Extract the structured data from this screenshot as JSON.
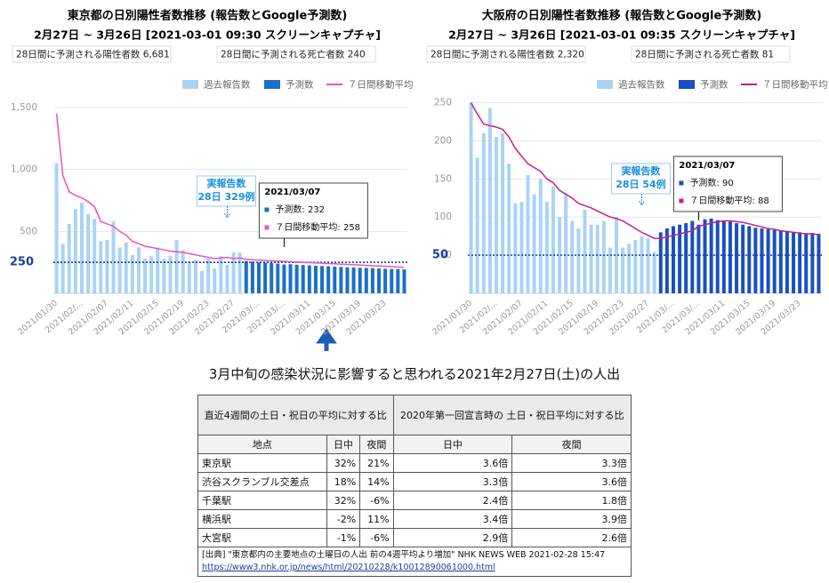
{
  "chart_data": [
    {
      "type": "bar",
      "title": "東京都の日別陽性者数推移 (報告数とGoogle予測数)",
      "subtitle": "2月27日 ~ 3月26日 [2021-03-01 09:30 スクリーンキャプチャ]",
      "stats": [
        "28日間に予測される陽性者数 6,681",
        "28日間に予測される死亡者数 240"
      ],
      "categories": [
        "2021/01/30",
        null,
        null,
        null,
        "2021/02/...",
        null,
        null,
        null,
        "2021/02/07",
        null,
        null,
        null,
        "2021/02/11",
        null,
        null,
        null,
        "2021/02/15",
        null,
        null,
        null,
        "2021/02/19",
        null,
        null,
        null,
        "2021/02/23",
        null,
        null,
        null,
        "2021/02/27",
        null,
        null,
        null,
        "2021/03/...",
        null,
        null,
        null,
        "2021/03/...",
        null,
        null,
        null,
        "2021/03/11",
        null,
        null,
        null,
        "2021/03/15",
        null,
        null,
        null,
        "2021/03/19",
        null,
        null,
        null,
        "2021/03/23",
        null,
        null,
        null
      ],
      "series": [
        {
          "name": "過去報告数",
          "color": "#a9d3f5",
          "values": [
            1050,
            400,
            560,
            680,
            730,
            640,
            600,
            420,
            430,
            580,
            370,
            410,
            310,
            370,
            280,
            300,
            370,
            280,
            300,
            430,
            350,
            260,
            270,
            180,
            280,
            200,
            300,
            230,
            330,
            329,
            null,
            null,
            null,
            null,
            null,
            null,
            null,
            null,
            null,
            null,
            null,
            null,
            null,
            null,
            null,
            null,
            null,
            null,
            null,
            null,
            null,
            null,
            null,
            null,
            null,
            null
          ]
        },
        {
          "name": "予測数",
          "color": "#1a6fc9",
          "values": [
            null,
            null,
            null,
            null,
            null,
            null,
            null,
            null,
            null,
            null,
            null,
            null,
            null,
            null,
            null,
            null,
            null,
            null,
            null,
            null,
            null,
            null,
            null,
            null,
            null,
            null,
            null,
            null,
            null,
            null,
            260,
            255,
            250,
            248,
            245,
            240,
            232,
            235,
            230,
            228,
            225,
            222,
            220,
            218,
            215,
            213,
            210,
            208,
            206,
            205,
            203,
            200,
            198,
            196,
            195,
            193
          ]
        },
        {
          "name": "７日間移動平均",
          "color": "#f050c0",
          "type": "line",
          "values": [
            1450,
            950,
            820,
            790,
            770,
            740,
            700,
            580,
            560,
            540,
            500,
            470,
            420,
            400,
            380,
            370,
            360,
            350,
            340,
            335,
            330,
            320,
            310,
            300,
            290,
            280,
            285,
            290,
            280,
            285,
            275,
            270,
            268,
            265,
            262,
            260,
            258,
            255,
            252,
            250,
            248,
            245,
            243,
            240,
            238,
            235,
            233,
            230,
            228,
            225,
            222,
            220,
            218,
            215,
            212,
            210
          ]
        }
      ],
      "ylim": [
        0,
        1600
      ],
      "yticks": [
        500,
        {
          "value": 1000,
          "label": "1,000"
        },
        {
          "value": 1500,
          "label": "1,500"
        }
      ],
      "grid": true,
      "reference_value": 250,
      "reference_color": "#1a3fa0",
      "annotation": {
        "title": "実報告数",
        "text": "28日 329例"
      },
      "tooltip": {
        "title": "2021/03/07",
        "lines": [
          "予測数: 232",
          "７日間移動平均: 258"
        ]
      }
    },
    {
      "type": "bar",
      "title": "大阪府の日別陽性者数推移 (報告数とGoogle予測数)",
      "subtitle": "2月27日 ~ 3月26日 [2021-03-01 09:35 スクリーンキャプチャ]",
      "stats": [
        "28日間に予測される陽性者数 2,320",
        "28日間に予測される死亡者数 81"
      ],
      "categories": [
        "2021/01/30",
        null,
        null,
        null,
        "2021/02/...",
        null,
        null,
        null,
        "2021/02/07",
        null,
        null,
        null,
        "2021/02/11",
        null,
        null,
        null,
        "2021/02/15",
        null,
        null,
        null,
        "2021/02/19",
        null,
        null,
        null,
        "2021/02/23",
        null,
        null,
        null,
        "2021/02/27",
        null,
        null,
        null,
        "2021/03/...",
        null,
        null,
        null,
        "2021/03/...",
        null,
        null,
        null,
        "2021/03/11",
        null,
        null,
        null,
        "2021/03/15",
        null,
        null,
        null,
        "2021/03/19",
        null,
        null,
        null,
        "2021/03/23",
        null,
        null,
        null
      ],
      "series": [
        {
          "name": "過去報告数",
          "color": "#a9d3f5",
          "values": [
            250,
            178,
            210,
            243,
            205,
            210,
            170,
            118,
            120,
            155,
            130,
            150,
            120,
            140,
            100,
            130,
            95,
            85,
            110,
            90,
            90,
            95,
            60,
            100,
            60,
            65,
            70,
            75,
            72,
            54,
            null,
            null,
            null,
            null,
            null,
            null,
            null,
            null,
            null,
            null,
            null,
            null,
            null,
            null,
            null,
            null,
            null,
            null,
            null,
            null,
            null,
            null,
            null,
            null,
            null,
            null
          ]
        },
        {
          "name": "予測数",
          "color": "#1a50c0",
          "values": [
            null,
            null,
            null,
            null,
            null,
            null,
            null,
            null,
            null,
            null,
            null,
            null,
            null,
            null,
            null,
            null,
            null,
            null,
            null,
            null,
            null,
            null,
            null,
            null,
            null,
            null,
            null,
            null,
            null,
            null,
            80,
            85,
            88,
            90,
            92,
            95,
            90,
            97,
            98,
            96,
            95,
            94,
            92,
            90,
            88,
            86,
            85,
            84,
            83,
            82,
            81,
            80,
            80,
            79,
            79,
            78
          ]
        },
        {
          "name": "７日間移動平均",
          "color": "#c0208f",
          "type": "line",
          "values": [
            250,
            235,
            222,
            220,
            218,
            215,
            205,
            190,
            180,
            170,
            165,
            160,
            150,
            145,
            135,
            130,
            125,
            118,
            115,
            112,
            108,
            104,
            100,
            98,
            95,
            90,
            85,
            80,
            76,
            72,
            72,
            74,
            76,
            78,
            80,
            82,
            88,
            90,
            92,
            94,
            95,
            95,
            94,
            93,
            91,
            89,
            87,
            85,
            84,
            82,
            81,
            80,
            79,
            78,
            78,
            77
          ]
        }
      ],
      "ylim": [
        0,
        260
      ],
      "yticks": [
        50,
        100,
        150,
        200,
        250
      ],
      "grid": true,
      "reference_value": 50,
      "reference_color": "#1a3fa0",
      "annotation": {
        "title": "実報告数",
        "text": "28日 54例"
      },
      "tooltip": {
        "title": "2021/03/07",
        "lines": [
          "予測数: 90",
          "７日間移動平均: 88"
        ]
      }
    }
  ],
  "heading": "3月中旬の感染状況に影響すると思われる2021年2月27日(土)の人出",
  "table": {
    "group_headers": [
      "直近4週間の土日・祝日の平均に対する比",
      "2020年第一回宣言時の 土日・祝日平均に対する比"
    ],
    "columns": [
      "地点",
      "日中",
      "夜間",
      "日中",
      "夜間"
    ],
    "rows": [
      [
        "東京駅",
        "32%",
        "21%",
        "3.6倍",
        "3.3倍"
      ],
      [
        "渋谷スクランブル交差点",
        "18%",
        "14%",
        "3.3倍",
        "3.6倍"
      ],
      [
        "千葉駅",
        "32%",
        "-6%",
        "2.4倍",
        "1.8倍"
      ],
      [
        "横浜駅",
        "-2%",
        "11%",
        "3.4倍",
        "3.9倍"
      ],
      [
        "大宮駅",
        "-1%",
        "-6%",
        "2.9倍",
        "2.6倍"
      ]
    ],
    "source": "[出典] \"東京都内の主要地点の土曜日の人出 前の4週平均より増加\" NHK NEWS WEB 2021-02-28 15:47",
    "url": "https://www3.nhk.or.jp/news/html/20210228/k10012890061000.html"
  }
}
